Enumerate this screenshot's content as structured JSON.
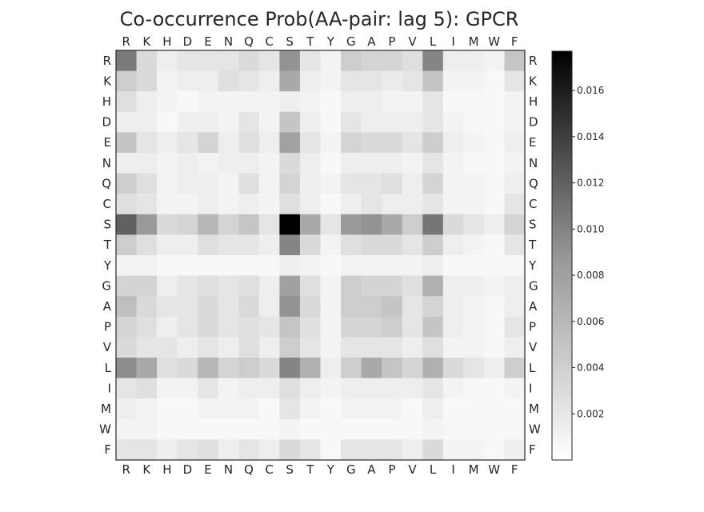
{
  "chart_data": {
    "type": "heatmap",
    "title": "Co-occurrence Prob(AA-pair: lag 5): GPCR",
    "rows": [
      "R",
      "K",
      "H",
      "D",
      "E",
      "N",
      "Q",
      "C",
      "S",
      "T",
      "Y",
      "G",
      "A",
      "P",
      "V",
      "L",
      "I",
      "M",
      "W",
      "F"
    ],
    "cols": [
      "R",
      "K",
      "H",
      "D",
      "E",
      "N",
      "Q",
      "C",
      "S",
      "T",
      "Y",
      "G",
      "A",
      "P",
      "V",
      "L",
      "I",
      "M",
      "W",
      "F"
    ],
    "colorbar": {
      "vmin": 0.0,
      "vmax": 0.0177,
      "ticks": [
        0.002,
        0.004,
        0.006,
        0.008,
        0.01,
        0.012,
        0.014,
        0.016
      ],
      "tick_labels": [
        "0.002",
        "0.004",
        "0.006",
        "0.008",
        "0.010",
        "0.012",
        "0.014",
        "0.016"
      ],
      "colormap": "Greys"
    },
    "values": [
      [
        0.0092,
        0.0026,
        0.0012,
        0.0018,
        0.0018,
        0.0018,
        0.0026,
        0.0018,
        0.0075,
        0.0018,
        0.0008,
        0.0035,
        0.003,
        0.003,
        0.0022,
        0.0085,
        0.0012,
        0.0012,
        0.0008,
        0.004
      ],
      [
        0.0035,
        0.0026,
        0.0008,
        0.0012,
        0.0012,
        0.0022,
        0.0018,
        0.0012,
        0.006,
        0.0012,
        0.0008,
        0.0018,
        0.0018,
        0.0014,
        0.0018,
        0.004,
        0.0008,
        0.0008,
        0.0005,
        0.0018
      ],
      [
        0.0022,
        0.0012,
        0.0008,
        0.0005,
        0.0008,
        0.0008,
        0.0008,
        0.0008,
        0.0012,
        0.0008,
        0.0005,
        0.0012,
        0.0012,
        0.0008,
        0.0008,
        0.0018,
        0.0005,
        0.0005,
        0.0005,
        0.0008
      ],
      [
        0.0012,
        0.0012,
        0.0005,
        0.0012,
        0.0012,
        0.0008,
        0.0018,
        0.0008,
        0.004,
        0.0012,
        0.0005,
        0.0018,
        0.0012,
        0.0012,
        0.0012,
        0.0018,
        0.0008,
        0.0005,
        0.0005,
        0.0008
      ],
      [
        0.004,
        0.0018,
        0.0012,
        0.0018,
        0.003,
        0.0012,
        0.0022,
        0.0012,
        0.0065,
        0.0018,
        0.0008,
        0.003,
        0.0026,
        0.0026,
        0.0018,
        0.0035,
        0.0012,
        0.0008,
        0.0005,
        0.0012
      ],
      [
        0.0012,
        0.0012,
        0.0008,
        0.0012,
        0.0008,
        0.0012,
        0.0012,
        0.0008,
        0.0026,
        0.0012,
        0.0005,
        0.0012,
        0.0012,
        0.0012,
        0.0008,
        0.0018,
        0.0008,
        0.0005,
        0.0005,
        0.0008
      ],
      [
        0.0035,
        0.0022,
        0.0008,
        0.0012,
        0.0012,
        0.0008,
        0.0022,
        0.0008,
        0.003,
        0.0012,
        0.0008,
        0.0018,
        0.0018,
        0.0022,
        0.0012,
        0.003,
        0.0008,
        0.0008,
        0.0005,
        0.0012
      ],
      [
        0.0022,
        0.0018,
        0.0008,
        0.0008,
        0.0012,
        0.0008,
        0.0012,
        0.0008,
        0.0022,
        0.0012,
        0.0005,
        0.0012,
        0.0018,
        0.0012,
        0.0012,
        0.0018,
        0.0008,
        0.0008,
        0.0005,
        0.0018
      ],
      [
        0.011,
        0.007,
        0.0026,
        0.003,
        0.005,
        0.003,
        0.004,
        0.0018,
        0.0177,
        0.006,
        0.0018,
        0.007,
        0.0075,
        0.006,
        0.0035,
        0.0095,
        0.0026,
        0.0018,
        0.0012,
        0.003
      ],
      [
        0.0035,
        0.0022,
        0.0012,
        0.0012,
        0.0022,
        0.0018,
        0.0018,
        0.0012,
        0.0085,
        0.0026,
        0.0008,
        0.0022,
        0.0026,
        0.0026,
        0.0018,
        0.0035,
        0.0012,
        0.0008,
        0.0005,
        0.0018
      ],
      [
        0.0008,
        0.0008,
        0.0005,
        0.0005,
        0.0005,
        0.0005,
        0.0005,
        0.0005,
        0.0012,
        0.0008,
        0.0005,
        0.0008,
        0.0008,
        0.0008,
        0.0008,
        0.0012,
        0.0005,
        0.0005,
        0.0005,
        0.0005
      ],
      [
        0.003,
        0.003,
        0.0012,
        0.0018,
        0.0022,
        0.0018,
        0.0022,
        0.0012,
        0.0065,
        0.0022,
        0.0008,
        0.0035,
        0.003,
        0.003,
        0.0022,
        0.0055,
        0.0012,
        0.0012,
        0.0008,
        0.0012
      ],
      [
        0.0045,
        0.0026,
        0.0018,
        0.0018,
        0.0026,
        0.0018,
        0.0026,
        0.0012,
        0.0075,
        0.0026,
        0.0008,
        0.0035,
        0.0035,
        0.004,
        0.0018,
        0.003,
        0.0012,
        0.0008,
        0.0005,
        0.0012
      ],
      [
        0.003,
        0.0022,
        0.0012,
        0.0018,
        0.0026,
        0.0018,
        0.0022,
        0.0018,
        0.004,
        0.0022,
        0.0008,
        0.003,
        0.003,
        0.0035,
        0.0018,
        0.004,
        0.0012,
        0.0008,
        0.0005,
        0.0018
      ],
      [
        0.0026,
        0.0018,
        0.0018,
        0.0012,
        0.0018,
        0.0012,
        0.0022,
        0.0012,
        0.0035,
        0.0018,
        0.0008,
        0.0018,
        0.0018,
        0.0018,
        0.0012,
        0.0022,
        0.0008,
        0.0008,
        0.0005,
        0.0012
      ],
      [
        0.008,
        0.006,
        0.0022,
        0.0026,
        0.005,
        0.003,
        0.0035,
        0.0026,
        0.0085,
        0.0055,
        0.0012,
        0.0035,
        0.006,
        0.004,
        0.003,
        0.0055,
        0.0026,
        0.0018,
        0.0012,
        0.0035
      ],
      [
        0.0018,
        0.0022,
        0.0008,
        0.0008,
        0.0018,
        0.0008,
        0.0012,
        0.0012,
        0.0022,
        0.0012,
        0.0008,
        0.0012,
        0.0012,
        0.0012,
        0.0012,
        0.0018,
        0.0008,
        0.0005,
        0.0005,
        0.0008
      ],
      [
        0.0012,
        0.0008,
        0.0005,
        0.0005,
        0.0008,
        0.0008,
        0.0008,
        0.0005,
        0.0018,
        0.0008,
        0.0005,
        0.0008,
        0.0008,
        0.0008,
        0.0005,
        0.0012,
        0.0005,
        0.0005,
        0.0005,
        0.0005
      ],
      [
        0.0008,
        0.0008,
        0.0005,
        0.0005,
        0.0005,
        0.0005,
        0.0005,
        0.0005,
        0.0008,
        0.0005,
        0.0005,
        0.0005,
        0.0005,
        0.0005,
        0.0005,
        0.0008,
        0.0005,
        0.0005,
        0.0005,
        0.0005
      ],
      [
        0.0018,
        0.0018,
        0.0012,
        0.0018,
        0.0022,
        0.0012,
        0.0018,
        0.0012,
        0.0026,
        0.0018,
        0.0005,
        0.0018,
        0.0018,
        0.0018,
        0.0012,
        0.0026,
        0.0008,
        0.0008,
        0.0005,
        0.0012
      ]
    ]
  }
}
